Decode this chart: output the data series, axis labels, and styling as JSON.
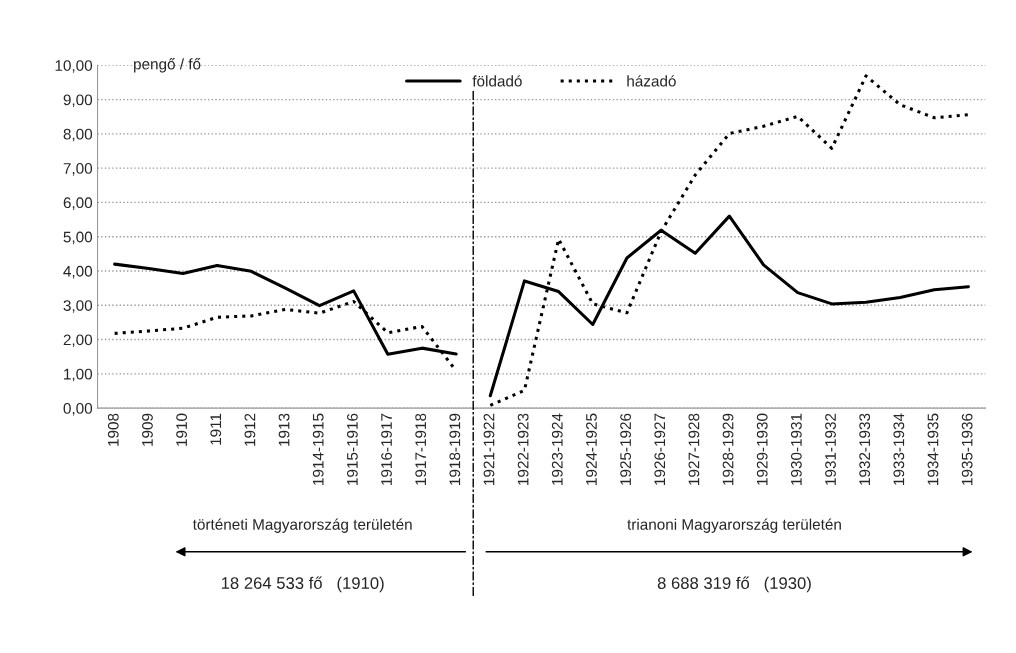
{
  "chart_data": {
    "type": "line",
    "ylabel": "pengő / fő",
    "categories": [
      "1908",
      "1909",
      "1910",
      "1911",
      "1912",
      "1913",
      "1914-1915",
      "1915-1916",
      "1916-1917",
      "1917-1918",
      "1918-1919",
      "1921-1922",
      "1922-1923",
      "1923-1924",
      "1924-1925",
      "1925-1926",
      "1926-1927",
      "1927-1928",
      "1928-1929",
      "1929-1930",
      "1930-1931",
      "1931-1932",
      "1932-1933",
      "1933-1934",
      "1934-1935",
      "1935-1936"
    ],
    "series": [
      {
        "name": "földadó",
        "color": "#000000",
        "line_style": "solid",
        "values": [
          4.2,
          4.07,
          3.93,
          4.16,
          3.99,
          3.5,
          2.99,
          3.42,
          1.57,
          1.75,
          1.58,
          null,
          null,
          null,
          null,
          null,
          null,
          null,
          null,
          null,
          null,
          null,
          null,
          null,
          null,
          null
        ]
      },
      {
        "name": "házadó",
        "color": "#000000",
        "line_style": "dotted",
        "values": [
          2.18,
          2.25,
          2.33,
          2.65,
          2.69,
          2.88,
          2.77,
          3.11,
          2.2,
          2.38,
          1.09,
          null,
          null,
          null,
          null,
          null,
          null,
          null,
          null,
          null,
          null,
          null,
          null,
          null,
          null,
          null
        ]
      },
      {
        "color": "#000000",
        "line_style": "solid",
        "values": [
          null,
          null,
          null,
          null,
          null,
          null,
          null,
          null,
          null,
          null,
          null,
          0.36,
          3.71,
          3.4,
          2.44,
          4.38,
          5.19,
          4.52,
          5.6,
          4.18,
          3.37,
          3.04,
          3.09,
          3.23,
          3.45,
          3.54
        ]
      },
      {
        "color": "#000000",
        "line_style": "dotted",
        "values": [
          null,
          null,
          null,
          null,
          null,
          null,
          null,
          null,
          null,
          null,
          null,
          0.08,
          0.52,
          4.93,
          3.04,
          2.78,
          5.15,
          6.8,
          8.01,
          8.22,
          8.51,
          7.58,
          9.69,
          8.85,
          8.47,
          8.56
        ]
      }
    ],
    "ylim": [
      0,
      10
    ],
    "yticks": [
      {
        "value": 0,
        "label": "0,00"
      },
      {
        "value": 1,
        "label": "1,00"
      },
      {
        "value": 2,
        "label": "2,00"
      },
      {
        "value": 3,
        "label": "3,00"
      },
      {
        "value": 4,
        "label": "4,00"
      },
      {
        "value": 5,
        "label": "5,00"
      },
      {
        "value": 6,
        "label": "6,00"
      },
      {
        "value": 7,
        "label": "7,00"
      },
      {
        "value": 8,
        "label": "8,00"
      },
      {
        "value": 9,
        "label": "9,00"
      },
      {
        "value": 10,
        "label": "10,00"
      }
    ],
    "grid": "y",
    "legend": "top",
    "annotations": [
      "történeti Magyarország területén",
      "18 264 533 fő   (1910)",
      "trianoni Magyarország területén",
      "8 688 319 fő   (1930)"
    ]
  }
}
